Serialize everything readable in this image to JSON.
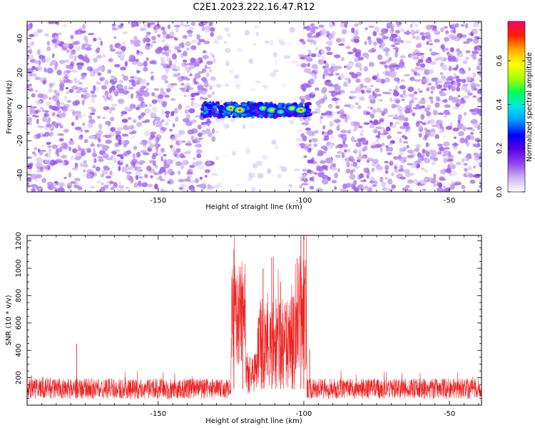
{
  "figure": {
    "title": "C2E1.2023.222.16.47.R12"
  },
  "chart_data": [
    {
      "type": "heatmap",
      "xlabel": "Height of straight line (km)",
      "ylabel": "Frequency (Hz)",
      "xlim": [
        -195,
        -39
      ],
      "ylim": [
        -50,
        50
      ],
      "x_ticks": [
        -150,
        -100,
        -50
      ],
      "y_ticks": [
        -40,
        -20,
        0,
        20,
        40
      ],
      "colorbar": {
        "label": "Normalized spectral amplitude",
        "range": [
          0,
          0.78
        ],
        "ticks": [
          "0.0",
          "0.2",
          "0.4",
          "0.6"
        ],
        "colormap": [
          "#ffffff",
          "#cdb2f0",
          "#8f44f0",
          "#5a00e6",
          "#0000ff",
          "#0099ff",
          "#00e8e8",
          "#00ff55",
          "#aaff00",
          "#ffff00",
          "#ffaa00",
          "#ff2200",
          "#ff0066"
        ]
      },
      "background_noise_level": 0.12,
      "low_noise_gap_km": [
        -131,
        -101
      ],
      "signal_band": {
        "height_range_km": [
          -135,
          -98
        ],
        "frequency_hz": -2,
        "peaks": [
          {
            "height_km": -125,
            "frequency_hz": -1,
            "amplitude": 0.7
          },
          {
            "height_km": -122,
            "frequency_hz": -2,
            "amplitude": 0.75
          },
          {
            "height_km": -114,
            "frequency_hz": -1,
            "amplitude": 0.55
          },
          {
            "height_km": -111,
            "frequency_hz": -2,
            "amplitude": 0.62
          },
          {
            "height_km": -108,
            "frequency_hz": -3,
            "amplitude": 0.5
          },
          {
            "height_km": -104,
            "frequency_hz": -1,
            "amplitude": 0.6
          },
          {
            "height_km": -101,
            "frequency_hz": -2,
            "amplitude": 0.72
          }
        ]
      },
      "grid": false
    },
    {
      "type": "line",
      "xlabel": "Height of straight line (km)",
      "ylabel": "SNR (10 * v/v)",
      "xlim": [
        -195,
        -39
      ],
      "ylim": [
        0,
        1240
      ],
      "x_ticks": [
        -150,
        -100,
        -50
      ],
      "y_ticks": [
        200,
        400,
        600,
        800,
        1000,
        1200
      ],
      "series_color": "#ee2222",
      "baseline_level": 120,
      "baseline_spread": 75,
      "notable_points": [
        {
          "x": -178,
          "y": 450
        },
        {
          "x": -124,
          "y": 1140
        },
        {
          "x": -121,
          "y": 870
        },
        {
          "x": -114,
          "y": 1000
        },
        {
          "x": -111,
          "y": 1080
        },
        {
          "x": -108,
          "y": 900
        },
        {
          "x": -104,
          "y": 790
        },
        {
          "x": -101,
          "y": 1240
        },
        {
          "x": -100,
          "y": 1220
        },
        {
          "x": -98,
          "y": 410
        }
      ],
      "segments": [
        {
          "x": [
            -195,
            -127
          ],
          "level": 120,
          "spread": 75
        },
        {
          "x": [
            -125,
            -120
          ],
          "level": 650,
          "spread": 400
        },
        {
          "x": [
            -120,
            -116
          ],
          "level": 230,
          "spread": 150
        },
        {
          "x": [
            -116,
            -103
          ],
          "level": 450,
          "spread": 350
        },
        {
          "x": [
            -103,
            -99
          ],
          "level": 700,
          "spread": 450
        },
        {
          "x": [
            -98,
            -39
          ],
          "level": 120,
          "spread": 75
        }
      ],
      "grid": false
    }
  ]
}
